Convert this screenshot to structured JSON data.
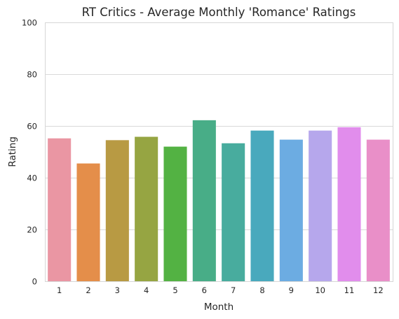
{
  "chart_data": {
    "type": "bar",
    "title": "RT Critics - Average Monthly 'Romance' Ratings",
    "xlabel": "Month",
    "ylabel": "Rating",
    "categories": [
      "1",
      "2",
      "3",
      "4",
      "5",
      "6",
      "7",
      "8",
      "9",
      "10",
      "11",
      "12"
    ],
    "values": [
      55.2,
      45.5,
      54.5,
      55.8,
      52.0,
      62.2,
      53.3,
      58.2,
      54.7,
      58.2,
      59.5,
      54.7
    ],
    "colors": [
      "#ea96a3",
      "#e48e4a",
      "#b89a43",
      "#96a542",
      "#53b243",
      "#48ad87",
      "#48ac9e",
      "#49a9bd",
      "#6cace2",
      "#b6a7ec",
      "#e18dec",
      "#e98fc8"
    ],
    "ylim": [
      0,
      100
    ],
    "yticks": [
      0,
      20,
      40,
      60,
      80,
      100
    ],
    "grid": "y",
    "legend": "none"
  }
}
